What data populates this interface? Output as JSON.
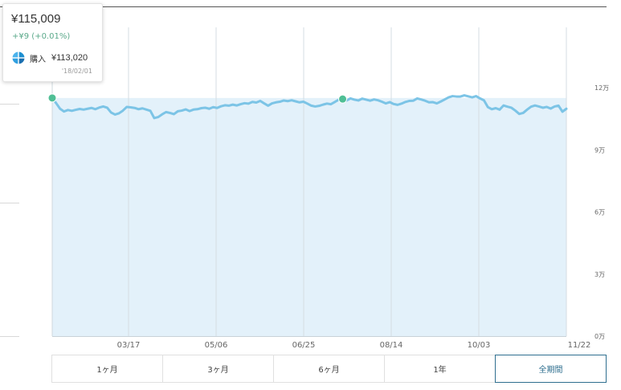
{
  "tooltip": {
    "value": "¥115,009",
    "change": "+¥9 (+0.01%)",
    "buy_label": "購入",
    "buy_price": "¥113,020",
    "date": "'18/02/01",
    "icon": "buy-pinwheel-icon"
  },
  "period_buttons": [
    {
      "label": "1ヶ月",
      "active": false
    },
    {
      "label": "3ヶ月",
      "active": false
    },
    {
      "label": "6ヶ月",
      "active": false
    },
    {
      "label": "1年",
      "active": false
    },
    {
      "label": "全期間",
      "active": true
    }
  ],
  "colors": {
    "line": "#7cc4e6",
    "area": "#e3f1fa",
    "marker": "#4fbf95",
    "active": "#2f6f8f"
  },
  "chart_data": {
    "type": "area",
    "x_ticks": [
      "03/17",
      "05/06",
      "06/25",
      "08/14",
      "10/03",
      "11/22"
    ],
    "y_ticks": [
      "0万",
      "3万",
      "6万",
      "9万",
      "12万"
    ],
    "ylim": [
      0,
      130000
    ],
    "reference_line": 115009,
    "series": [
      {
        "values": [
          115009,
          112500,
          109800,
          108500,
          109200,
          108800,
          109300,
          109700,
          109400,
          109800,
          110200,
          109600,
          110400,
          110900,
          110300,
          108000,
          107000,
          107600,
          108900,
          110700,
          110500,
          110200,
          109600,
          110000,
          109400,
          108800,
          105300,
          105800,
          107100,
          108200,
          107800,
          107200,
          108600,
          108900,
          109500,
          108700,
          109400,
          109600,
          110100,
          110300,
          109800,
          110600,
          110200,
          111000,
          111500,
          111300,
          111800,
          111400,
          112000,
          112500,
          112300,
          113100,
          112800,
          113600,
          112400,
          111300,
          112400,
          112900,
          113200,
          113800,
          113500,
          113900,
          113400,
          112900,
          113200,
          112300,
          111300,
          110900,
          111200,
          111800,
          112300,
          112000,
          113100,
          114200,
          114500,
          113800,
          114800,
          114200,
          113800,
          114700,
          114200,
          113700,
          114300,
          113900,
          113200,
          112400,
          113000,
          112100,
          111700,
          112300,
          113100,
          113600,
          113700,
          114800,
          114300,
          113700,
          112900,
          113000,
          112400,
          113300,
          114300,
          115300,
          115900,
          115700,
          115700,
          116300,
          115800,
          115300,
          115900,
          114800,
          113900,
          110600,
          109600,
          110100,
          109400,
          111400,
          110800,
          110300,
          108900,
          107300,
          107800,
          109400,
          110800,
          111400,
          110900,
          110300,
          110700,
          109900,
          110900,
          111300,
          108400,
          109800
        ]
      }
    ],
    "markers": [
      {
        "label": "'18/02/01",
        "value": 115009
      },
      {
        "label": "08/14",
        "value": 114500
      }
    ]
  }
}
